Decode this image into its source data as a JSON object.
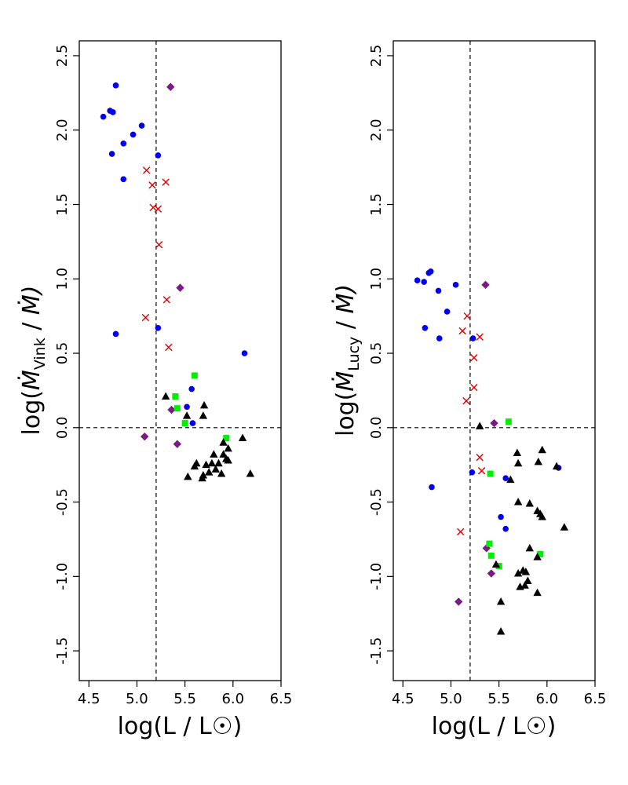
{
  "colors": {
    "blue_circle": "#0000ee",
    "red_cross": "#dd0000",
    "purple_diamond": "#7a1a86",
    "green_square": "#00ee00",
    "black_triangle": "#000000"
  },
  "chart_data": [
    {
      "id": "vink",
      "type": "scatter",
      "xlim": [
        4.4,
        6.5
      ],
      "ylim": [
        -1.7,
        2.6
      ],
      "xticks": [
        4.5,
        5.0,
        5.5,
        6.0,
        6.5
      ],
      "xtick_labels": [
        "4.5",
        "5.0",
        "5.5",
        "6.0",
        "6.5"
      ],
      "yticks": [
        -1.5,
        -1.0,
        -0.5,
        0.0,
        0.5,
        1.0,
        1.5,
        2.0,
        2.5
      ],
      "ytick_labels": [
        "-1.5",
        "-1.0",
        "-0.5",
        "0.0",
        "0.5",
        "1.0",
        "1.5",
        "2.0",
        "2.5"
      ],
      "xlabel": "log(L / L☉)",
      "ylabel": {
        "prefix": "log(",
        "M": "Ṁ",
        "sub": "Vink",
        "mid": " / ",
        "end": "Ṁ)"
      },
      "ref_lines": {
        "x": 5.2,
        "y": 0.0
      },
      "series": [
        {
          "name": "blue-circles",
          "marker": "circle",
          "color_key": "blue_circle",
          "x": [
            4.65,
            4.72,
            4.75,
            4.78,
            4.86,
            4.96,
            5.05,
            5.22,
            4.74,
            4.86,
            4.78,
            5.22,
            5.57,
            5.52,
            5.58,
            6.12
          ],
          "y": [
            2.09,
            2.13,
            2.12,
            2.3,
            1.91,
            1.97,
            2.03,
            1.83,
            1.84,
            1.67,
            0.63,
            0.67,
            0.26,
            0.14,
            0.03,
            0.5
          ]
        },
        {
          "name": "red-crosses",
          "marker": "cross",
          "color_key": "red_cross",
          "x": [
            5.1,
            5.16,
            5.17,
            5.22,
            5.3,
            5.23,
            5.31,
            5.09,
            5.33
          ],
          "y": [
            1.73,
            1.63,
            1.48,
            1.47,
            1.65,
            1.23,
            0.86,
            0.74,
            0.54
          ]
        },
        {
          "name": "purple-diamonds",
          "marker": "diamond",
          "color_key": "purple_diamond",
          "x": [
            5.35,
            5.45,
            5.36,
            5.08,
            5.42
          ],
          "y": [
            2.29,
            0.94,
            0.12,
            -0.06,
            -0.11
          ]
        },
        {
          "name": "green-squares",
          "marker": "square",
          "color_key": "green_square",
          "x": [
            5.6,
            5.4,
            5.42,
            5.5,
            5.93
          ],
          "y": [
            0.35,
            0.21,
            0.13,
            0.03,
            -0.07
          ]
        },
        {
          "name": "black-triangles",
          "marker": "triangle",
          "color_key": "black_triangle",
          "x": [
            5.3,
            5.52,
            5.7,
            5.69,
            5.62,
            5.9,
            6.1,
            5.95,
            5.93,
            5.8,
            5.85,
            5.78,
            5.75,
            5.6,
            5.69,
            5.95,
            5.82,
            5.88,
            5.72,
            5.53,
            5.68,
            6.18,
            5.9
          ],
          "y": [
            0.21,
            0.08,
            0.15,
            0.08,
            -0.24,
            -0.1,
            -0.07,
            -0.14,
            -0.21,
            -0.18,
            -0.24,
            -0.24,
            -0.3,
            -0.26,
            -0.32,
            -0.22,
            -0.28,
            -0.31,
            -0.25,
            -0.33,
            -0.34,
            -0.31,
            -0.18
          ]
        }
      ]
    },
    {
      "id": "lucy",
      "type": "scatter",
      "xlim": [
        4.4,
        6.5
      ],
      "ylim": [
        -1.7,
        2.6
      ],
      "xticks": [
        4.5,
        5.0,
        5.5,
        6.0,
        6.5
      ],
      "xtick_labels": [
        "4.5",
        "5.0",
        "5.5",
        "6.0",
        "6.5"
      ],
      "yticks": [
        -1.5,
        -1.0,
        -0.5,
        0.0,
        0.5,
        1.0,
        1.5,
        2.0,
        2.5
      ],
      "ytick_labels": [
        "-1.5",
        "-1.0",
        "-0.5",
        "0.0",
        "0.5",
        "1.0",
        "1.5",
        "2.0",
        "2.5"
      ],
      "xlabel": "log(L / L☉)",
      "ylabel": {
        "prefix": "log(",
        "M": "Ṁ",
        "sub": "Lucy",
        "mid": " / ",
        "end": "Ṁ)"
      },
      "ref_lines": {
        "x": 5.2,
        "y": 0.0
      },
      "series": [
        {
          "name": "blue-circles",
          "marker": "circle",
          "color_key": "blue_circle",
          "x": [
            4.65,
            4.72,
            4.77,
            4.79,
            4.87,
            4.96,
            5.05,
            4.73,
            4.88,
            5.23,
            4.8,
            5.22,
            5.57,
            6.12,
            5.52,
            5.57
          ],
          "y": [
            0.99,
            0.98,
            1.04,
            1.05,
            0.92,
            0.78,
            0.96,
            0.67,
            0.6,
            0.6,
            -0.4,
            -0.3,
            -0.34,
            -0.27,
            -0.6,
            -0.68
          ]
        },
        {
          "name": "red-crosses",
          "marker": "cross",
          "color_key": "red_cross",
          "x": [
            5.17,
            5.12,
            5.3,
            5.24,
            5.24,
            5.16,
            5.3,
            5.32,
            5.1
          ],
          "y": [
            0.75,
            0.65,
            0.61,
            0.47,
            0.27,
            0.18,
            -0.2,
            -0.29,
            -0.7
          ]
        },
        {
          "name": "purple-diamonds",
          "marker": "diamond",
          "color_key": "purple_diamond",
          "x": [
            5.36,
            5.45,
            5.37,
            5.42,
            5.08
          ],
          "y": [
            0.96,
            0.03,
            -0.81,
            -0.98,
            -1.17
          ]
        },
        {
          "name": "green-squares",
          "marker": "square",
          "color_key": "green_square",
          "x": [
            5.6,
            5.41,
            5.4,
            5.42,
            5.5,
            5.93
          ],
          "y": [
            0.04,
            -0.31,
            -0.78,
            -0.86,
            -0.93,
            -0.85
          ]
        },
        {
          "name": "black-triangles",
          "marker": "triangle",
          "color_key": "black_triangle",
          "x": [
            5.3,
            5.69,
            5.7,
            5.95,
            5.91,
            6.1,
            5.62,
            5.7,
            5.82,
            5.9,
            5.93,
            5.95,
            6.18,
            5.82,
            5.9,
            5.7,
            5.75,
            5.78,
            5.8,
            5.72,
            5.52,
            5.47,
            5.9,
            5.77,
            5.52
          ],
          "y": [
            0.01,
            -0.17,
            -0.24,
            -0.15,
            -0.23,
            -0.26,
            -0.35,
            -0.5,
            -0.51,
            -0.56,
            -0.58,
            -0.6,
            -0.67,
            -0.81,
            -0.87,
            -0.98,
            -0.96,
            -0.97,
            -1.03,
            -1.07,
            -1.17,
            -0.92,
            -1.11,
            -1.06,
            -1.37
          ]
        }
      ]
    }
  ]
}
